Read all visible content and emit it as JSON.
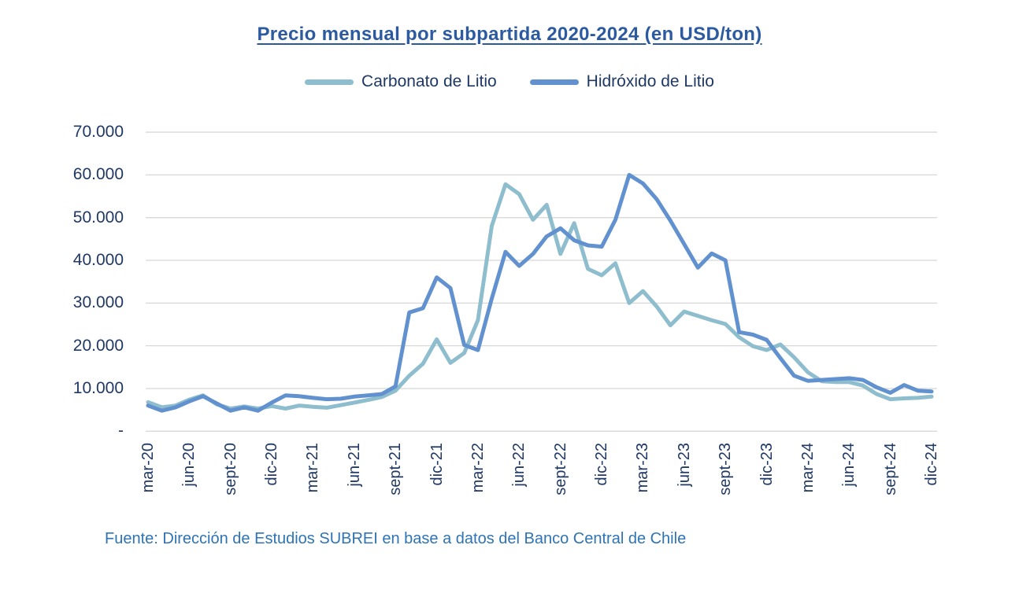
{
  "title": "Precio mensual por subpartida 2020-2024 (en USD/ton)",
  "source_note": "Fuente: Dirección de Estudios SUBREI en base a datos del Banco Central de Chile",
  "colors": {
    "carbonato_line": "#8EBDCE",
    "hidroxido_line": "#6191CF",
    "gridline": "#D8D8D8",
    "axis_text": "#1F3864",
    "title_text": "#2C5AA0",
    "source_text": "#2E74B5"
  },
  "chart_data": {
    "type": "line",
    "title": "Precio mensual por subpartida 2020-2024 (en USD/ton)",
    "xlabel": "",
    "ylabel": "USD/ton",
    "ylim": [
      0,
      70000
    ],
    "grid": true,
    "legend_position": "top",
    "y_tick_labels": [
      "70.000",
      "60.000",
      "50.000",
      "40.000",
      "30.000",
      "20.000",
      "10.000",
      "-"
    ],
    "x": [
      "mar-20",
      "abr-20",
      "may-20",
      "jun-20",
      "jul-20",
      "ago-20",
      "sept-20",
      "oct-20",
      "nov-20",
      "dic-20",
      "ene-21",
      "feb-21",
      "mar-21",
      "abr-21",
      "may-21",
      "jun-21",
      "jul-21",
      "ago-21",
      "sept-21",
      "oct-21",
      "nov-21",
      "dic-21",
      "ene-22",
      "feb-22",
      "mar-22",
      "abr-22",
      "may-22",
      "jun-22",
      "jul-22",
      "ago-22",
      "sept-22",
      "oct-22",
      "nov-22",
      "dic-22",
      "ene-23",
      "feb-23",
      "mar-23",
      "abr-23",
      "may-23",
      "jun-23",
      "jul-23",
      "ago-23",
      "sept-23",
      "oct-23",
      "nov-23",
      "dic-23",
      "ene-24",
      "feb-24",
      "mar-24",
      "abr-24",
      "may-24",
      "jun-24",
      "jul-24",
      "ago-24",
      "sept-24",
      "oct-24",
      "nov-24",
      "dic-24"
    ],
    "x_tick_labels": [
      "mar-20",
      "jun-20",
      "sept-20",
      "dic-20",
      "mar-21",
      "jun-21",
      "sept-21",
      "dic-21",
      "mar-22",
      "jun-22",
      "sept-22",
      "dic-22",
      "mar-23",
      "jun-23",
      "sept-23",
      "dic-23",
      "mar-24",
      "jun-24",
      "sept-24",
      "dic-24"
    ],
    "x_tick_every": 3,
    "series": [
      {
        "name": "Carbonato de Litio",
        "color": "#8EBDCE",
        "values": [
          6800,
          5600,
          6000,
          7400,
          8400,
          6300,
          5300,
          5800,
          5300,
          5900,
          5300,
          6000,
          5700,
          5500,
          6100,
          6700,
          7300,
          8000,
          9500,
          13000,
          15800,
          21500,
          16000,
          18300,
          26000,
          48000,
          57800,
          55500,
          49500,
          53000,
          41500,
          48700,
          38000,
          36500,
          39300,
          30000,
          32800,
          29200,
          24800,
          28000,
          27000,
          26000,
          25100,
          22000,
          19900,
          19000,
          20300,
          17300,
          13800,
          11700,
          11500,
          11500,
          10700,
          8700,
          7500,
          7700,
          7800,
          8100
        ]
      },
      {
        "name": "Hidróxido de Litio",
        "color": "#6191CF",
        "values": [
          6000,
          4800,
          5600,
          7000,
          8200,
          6500,
          4800,
          5600,
          4800,
          6700,
          8400,
          8200,
          7800,
          7500,
          7600,
          8100,
          8400,
          8700,
          10500,
          27800,
          28800,
          36000,
          33500,
          20200,
          19000,
          31000,
          42000,
          38700,
          41500,
          45600,
          47500,
          44700,
          43500,
          43200,
          49500,
          60000,
          58000,
          54300,
          49300,
          43800,
          38300,
          41600,
          40000,
          23200,
          22600,
          21400,
          17100,
          13000,
          11800,
          12000,
          12200,
          12400,
          12000,
          10300,
          9000,
          10800,
          9500,
          9300
        ]
      }
    ]
  }
}
